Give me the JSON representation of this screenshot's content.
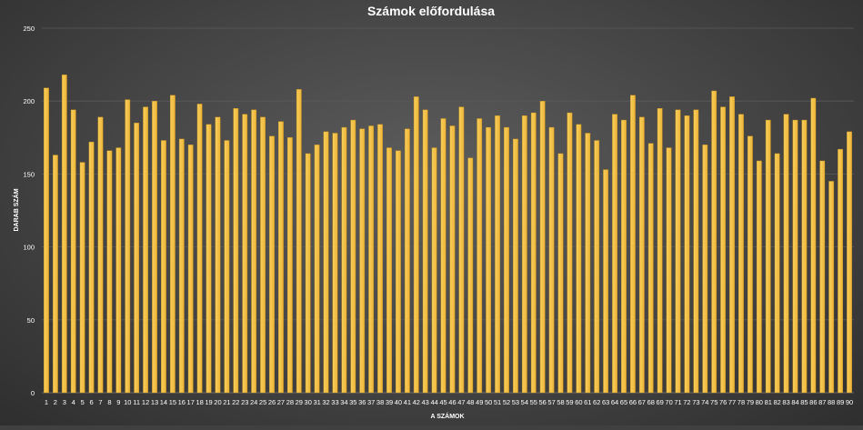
{
  "chart_data": {
    "type": "bar",
    "title": "Számok előfordulása",
    "xlabel": "A SZÁMOK",
    "ylabel": "DARAB SZÁM",
    "ylim": [
      0,
      250
    ],
    "yticks": [
      0,
      50,
      100,
      150,
      200,
      250
    ],
    "grid": true,
    "legend": "none",
    "colors": {
      "bar": "#f5c24b",
      "bar_edge": "#c48f1c",
      "grid": "#5a5a5a",
      "text": "#ffffff"
    },
    "categories": [
      "1",
      "2",
      "3",
      "4",
      "5",
      "6",
      "7",
      "8",
      "9",
      "10",
      "11",
      "12",
      "13",
      "14",
      "15",
      "16",
      "17",
      "18",
      "19",
      "20",
      "21",
      "22",
      "23",
      "24",
      "25",
      "26",
      "27",
      "28",
      "29",
      "30",
      "31",
      "32",
      "33",
      "34",
      "35",
      "36",
      "37",
      "38",
      "39",
      "40",
      "41",
      "42",
      "43",
      "44",
      "45",
      "46",
      "47",
      "48",
      "49",
      "50",
      "51",
      "52",
      "53",
      "54",
      "55",
      "56",
      "57",
      "58",
      "59",
      "60",
      "61",
      "62",
      "63",
      "64",
      "65",
      "66",
      "67",
      "68",
      "69",
      "70",
      "71",
      "72",
      "73",
      "74",
      "75",
      "76",
      "77",
      "78",
      "79",
      "80",
      "81",
      "82",
      "83",
      "84",
      "85",
      "86",
      "87",
      "88",
      "89",
      "90"
    ],
    "values": [
      209,
      163,
      218,
      194,
      158,
      172,
      189,
      166,
      168,
      201,
      185,
      196,
      200,
      173,
      204,
      174,
      170,
      198,
      184,
      189,
      173,
      195,
      191,
      194,
      189,
      176,
      186,
      175,
      208,
      164,
      170,
      179,
      178,
      182,
      187,
      181,
      183,
      184,
      168,
      166,
      181,
      203,
      194,
      168,
      188,
      183,
      196,
      161,
      188,
      182,
      190,
      182,
      174,
      190,
      192,
      200,
      182,
      164,
      192,
      184,
      178,
      173,
      153,
      191,
      187,
      204,
      189,
      171,
      195,
      168,
      194,
      190,
      194,
      170,
      207,
      196,
      203,
      191,
      176,
      159,
      187,
      164,
      191,
      187,
      187,
      202,
      159,
      145,
      167,
      179
    ]
  }
}
